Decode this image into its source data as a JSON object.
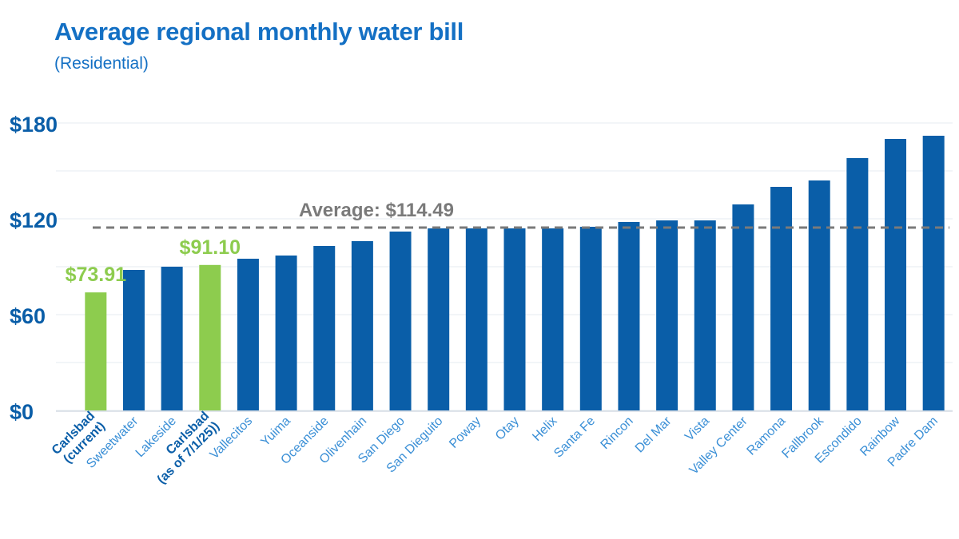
{
  "title": "Average regional monthly water bill",
  "subtitle": "(Residential)",
  "colors": {
    "title": "#1470c4",
    "bar": "#0a5ea8",
    "highlight": "#8dcc4e",
    "category_text": "#3a8fd6",
    "category_bold": "#0a5ea8",
    "tick": "#0a5ea8",
    "average_line": "#7a7a7a",
    "grid": "#e6ebf0"
  },
  "chart_data": {
    "type": "bar",
    "title": "Average regional monthly water bill",
    "subtitle": "(Residential)",
    "xlabel": "",
    "ylabel": "",
    "ylim": [
      0,
      180
    ],
    "yticks": [
      0,
      60,
      120,
      180
    ],
    "ytick_labels": [
      "$0",
      "$60",
      "$120",
      "$180"
    ],
    "grid": true,
    "legend": "none",
    "categories": [
      "Carlsbad (current)",
      "Sweetwater",
      "Lakeside",
      "Carlsbad (as of 7/1/25)",
      "Vallecitos",
      "Yuima",
      "Oceanside",
      "Olivenhain",
      "San Diego",
      "San Dieguito",
      "Poway",
      "Otay",
      "Helix",
      "Santa Fe",
      "Rincon",
      "Del Mar",
      "Vista",
      "Valley Center",
      "Ramona",
      "Fallbrook",
      "Escondido",
      "Rainbow",
      "Padre Dam"
    ],
    "category_lines": [
      [
        "Carlsbad",
        "(current)"
      ],
      [
        "Sweetwater"
      ],
      [
        "Lakeside"
      ],
      [
        "Carlsbad",
        "(as of 7/1/25))"
      ],
      [
        "Vallecitos"
      ],
      [
        "Yuima"
      ],
      [
        "Oceanside"
      ],
      [
        "Olivenhain"
      ],
      [
        "San Diego"
      ],
      [
        "San Dieguito"
      ],
      [
        "Poway"
      ],
      [
        "Otay"
      ],
      [
        "Helix"
      ],
      [
        "Santa Fe"
      ],
      [
        "Rincon"
      ],
      [
        "Del Mar"
      ],
      [
        "Vista"
      ],
      [
        "Valley Center"
      ],
      [
        "Ramona"
      ],
      [
        "Fallbrook"
      ],
      [
        "Escondido"
      ],
      [
        "Rainbow"
      ],
      [
        "Padre Dam"
      ]
    ],
    "values": [
      73.91,
      88,
      90,
      91.1,
      95,
      97,
      103,
      106,
      112,
      114,
      114,
      114,
      114,
      115,
      118,
      119,
      119,
      129,
      140,
      144,
      158,
      170,
      172
    ],
    "highlighted": [
      0,
      3
    ],
    "bold_labels": [
      0,
      3
    ],
    "data_labels": [
      {
        "index": 0,
        "text": "$73.91"
      },
      {
        "index": 3,
        "text": "$91.10"
      }
    ],
    "average": {
      "value": 114.49,
      "label": "Average: $114.49"
    }
  }
}
